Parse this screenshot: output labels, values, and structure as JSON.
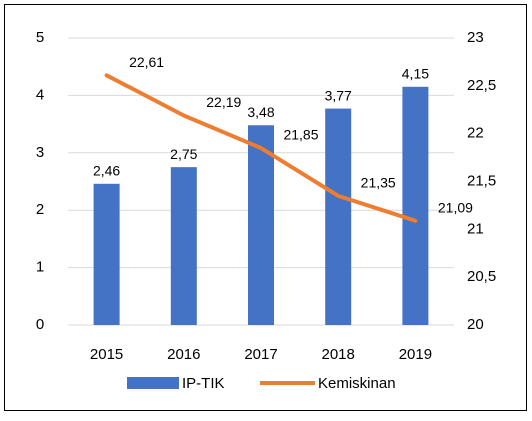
{
  "chart_data": {
    "type": "bar-line",
    "categories": [
      "2015",
      "2016",
      "2017",
      "2018",
      "2019"
    ],
    "series": [
      {
        "name": "IP-TIK",
        "type": "bar",
        "color": "#4472c4",
        "axis": "y",
        "values": [
          2.46,
          2.75,
          3.48,
          3.77,
          4.15
        ],
        "value_labels": [
          "2,46",
          "2,75",
          "3,48",
          "3,77",
          "4,15"
        ]
      },
      {
        "name": "Kemiskinan",
        "type": "line",
        "color": "#ed7d31",
        "axis": "y2",
        "values": [
          22.61,
          22.19,
          21.85,
          21.35,
          21.09
        ],
        "value_labels": [
          "22,61",
          "22,19",
          "21,85",
          "21,35",
          "21,09"
        ]
      }
    ],
    "ylim": [
      0,
      5
    ],
    "yticks": [
      0,
      1,
      2,
      3,
      4,
      5
    ],
    "y2lim": [
      20,
      23
    ],
    "y2ticks": [
      20,
      {
        "value": 20.5,
        "label": "20,5"
      },
      21,
      {
        "value": 21.5,
        "label": "21,5"
      },
      22,
      {
        "value": 22.5,
        "label": "22,5"
      },
      23
    ],
    "grid": true,
    "legend": "bottom"
  }
}
